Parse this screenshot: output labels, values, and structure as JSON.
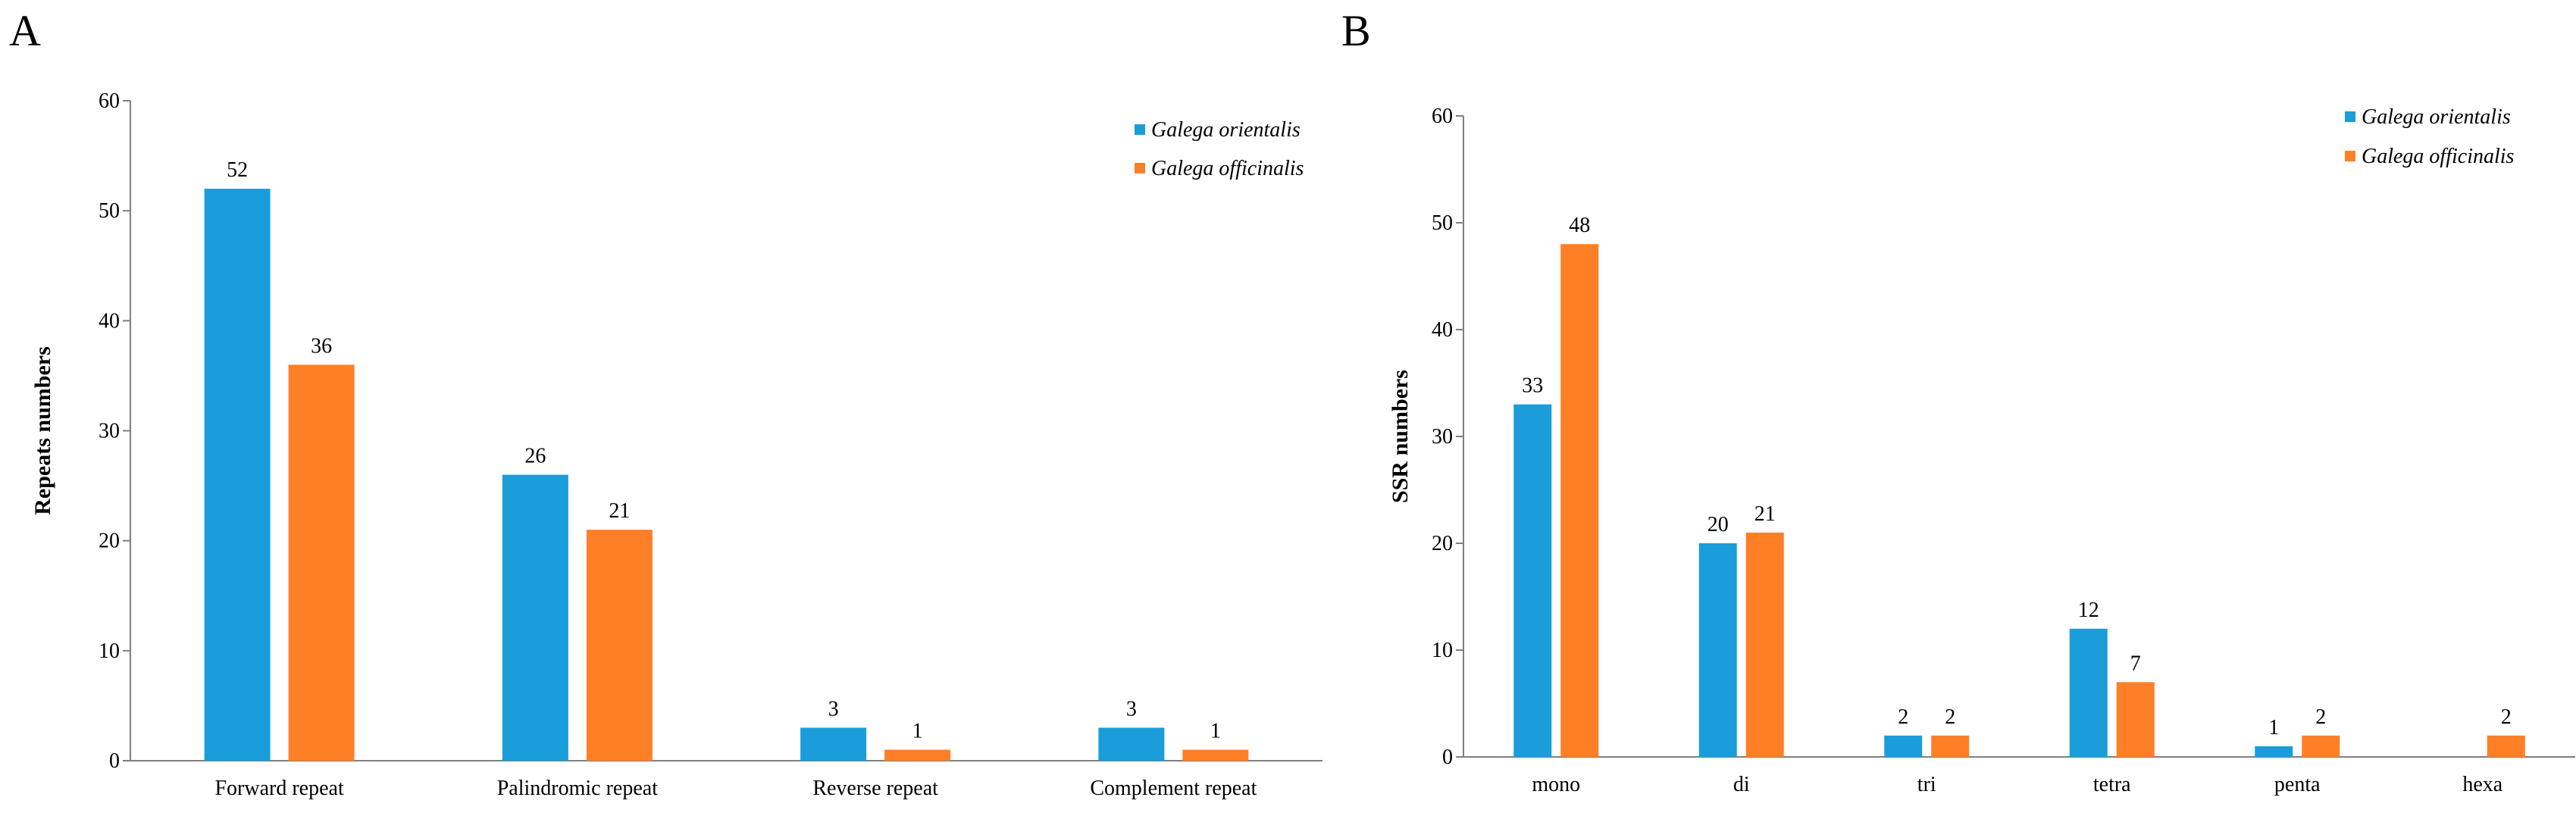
{
  "colors": {
    "orientalis": "#1a9dd9",
    "officinalis": "#ff7f27"
  },
  "chart_data": [
    {
      "type": "bar",
      "panel": "A",
      "title": "",
      "xlabel": "",
      "ylabel": "Repeats numbers",
      "ylim": [
        0,
        60
      ],
      "yticks": [
        0,
        10,
        20,
        30,
        40,
        50,
        60
      ],
      "categories": [
        "Forward repeat",
        "Palindromic repeat",
        "Reverse repeat",
        "Complement repeat"
      ],
      "series": [
        {
          "name": "Galega orientalis",
          "values": [
            52,
            26,
            3,
            3
          ]
        },
        {
          "name": "Galega officinalis",
          "values": [
            36,
            21,
            1,
            1
          ]
        }
      ],
      "legend": "top-right"
    },
    {
      "type": "bar",
      "panel": "B",
      "title": "",
      "xlabel": "",
      "ylabel": "SSR numbers",
      "ylim": [
        0,
        60
      ],
      "yticks": [
        0,
        10,
        20,
        30,
        40,
        50,
        60
      ],
      "categories": [
        "mono",
        "di",
        "tri",
        "tetra",
        "penta",
        "hexa"
      ],
      "series": [
        {
          "name": "Galega orientalis",
          "values": [
            33,
            20,
            2,
            12,
            1,
            null
          ]
        },
        {
          "name": "Galega officinalis",
          "values": [
            48,
            21,
            2,
            7,
            2,
            2
          ]
        }
      ],
      "legend": "top-right"
    }
  ]
}
